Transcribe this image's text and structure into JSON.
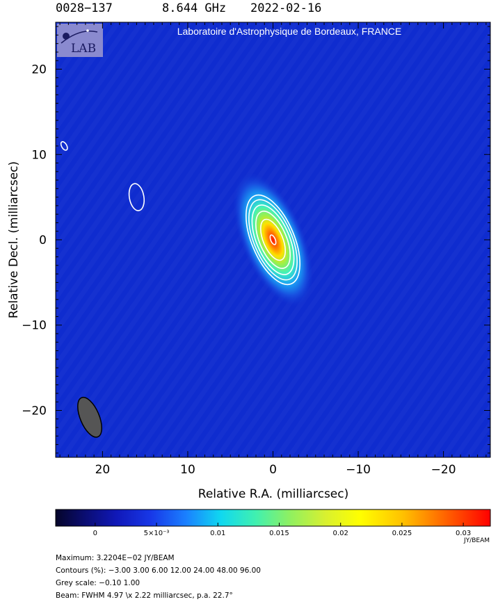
{
  "header": {
    "source": "0028−137",
    "frequency": "8.644 GHz",
    "date": "2022-02-16"
  },
  "banner": "Laboratoire d'Astrophysique de Bordeaux, FRANCE",
  "logo_text": "LAB",
  "chart_data": {
    "type": "heatmap",
    "title": "",
    "xlabel": "Relative R.A. (milliarcsec)",
    "ylabel": "Relative Decl. (milliarcsec)",
    "xlim": [
      25.5,
      -25.5
    ],
    "ylim": [
      -25.5,
      25.5
    ],
    "x_ticks": [
      20,
      10,
      0,
      -10,
      -20
    ],
    "x_tick_labels": [
      "20",
      "10",
      "0",
      "−10",
      "−20"
    ],
    "y_ticks": [
      20,
      10,
      0,
      -10,
      -20
    ],
    "y_tick_labels": [
      "20",
      "10",
      "0",
      "−10",
      "−20"
    ],
    "peak": {
      "x": 0,
      "y": 0,
      "value": 0.032204
    },
    "source_fwhm_major": 4.97,
    "source_fwhm_minor": 2.22,
    "source_pa_deg": 22.7,
    "contour_levels_percent": [
      -3.0,
      3.0,
      6.0,
      12.0,
      24.0,
      48.0,
      96.0
    ],
    "extra_contours": [
      {
        "x": 16,
        "y": 5,
        "major": 3.2,
        "minor": 1.7,
        "pa_deg": 10
      },
      {
        "x": 24.5,
        "y": 11,
        "major": 1.1,
        "minor": 0.6,
        "pa_deg": 30
      }
    ],
    "beam": {
      "x": 21.5,
      "y": -20.8,
      "major": 4.97,
      "minor": 2.22,
      "pa_deg": 22.7
    },
    "colorbar": {
      "min": -0.0032204,
      "max": 0.032204,
      "ticks": [
        0,
        0.005,
        0.01,
        0.015,
        0.02,
        0.025,
        0.03
      ],
      "tick_labels": [
        "0",
        "5×10⁻³",
        "0.01",
        "0.015",
        "0.02",
        "0.025",
        "0.03"
      ],
      "unit": "JY/BEAM"
    },
    "colors": {
      "background": "#0f2ccf",
      "frame": "#000000",
      "contour": "#ffffff",
      "beam": "#555555"
    }
  },
  "footer": {
    "maximum": "Maximum: 3.2204E−02 JY/BEAM",
    "contours": "Contours (%): −3.00 3.00 6.00 12.00 24.00 48.00 96.00",
    "grey": "Grey scale: −0.10 1.00",
    "beam": "Beam: FWHM 4.97 \\x 2.22 milliarcsec, p.a. 22.7°"
  }
}
